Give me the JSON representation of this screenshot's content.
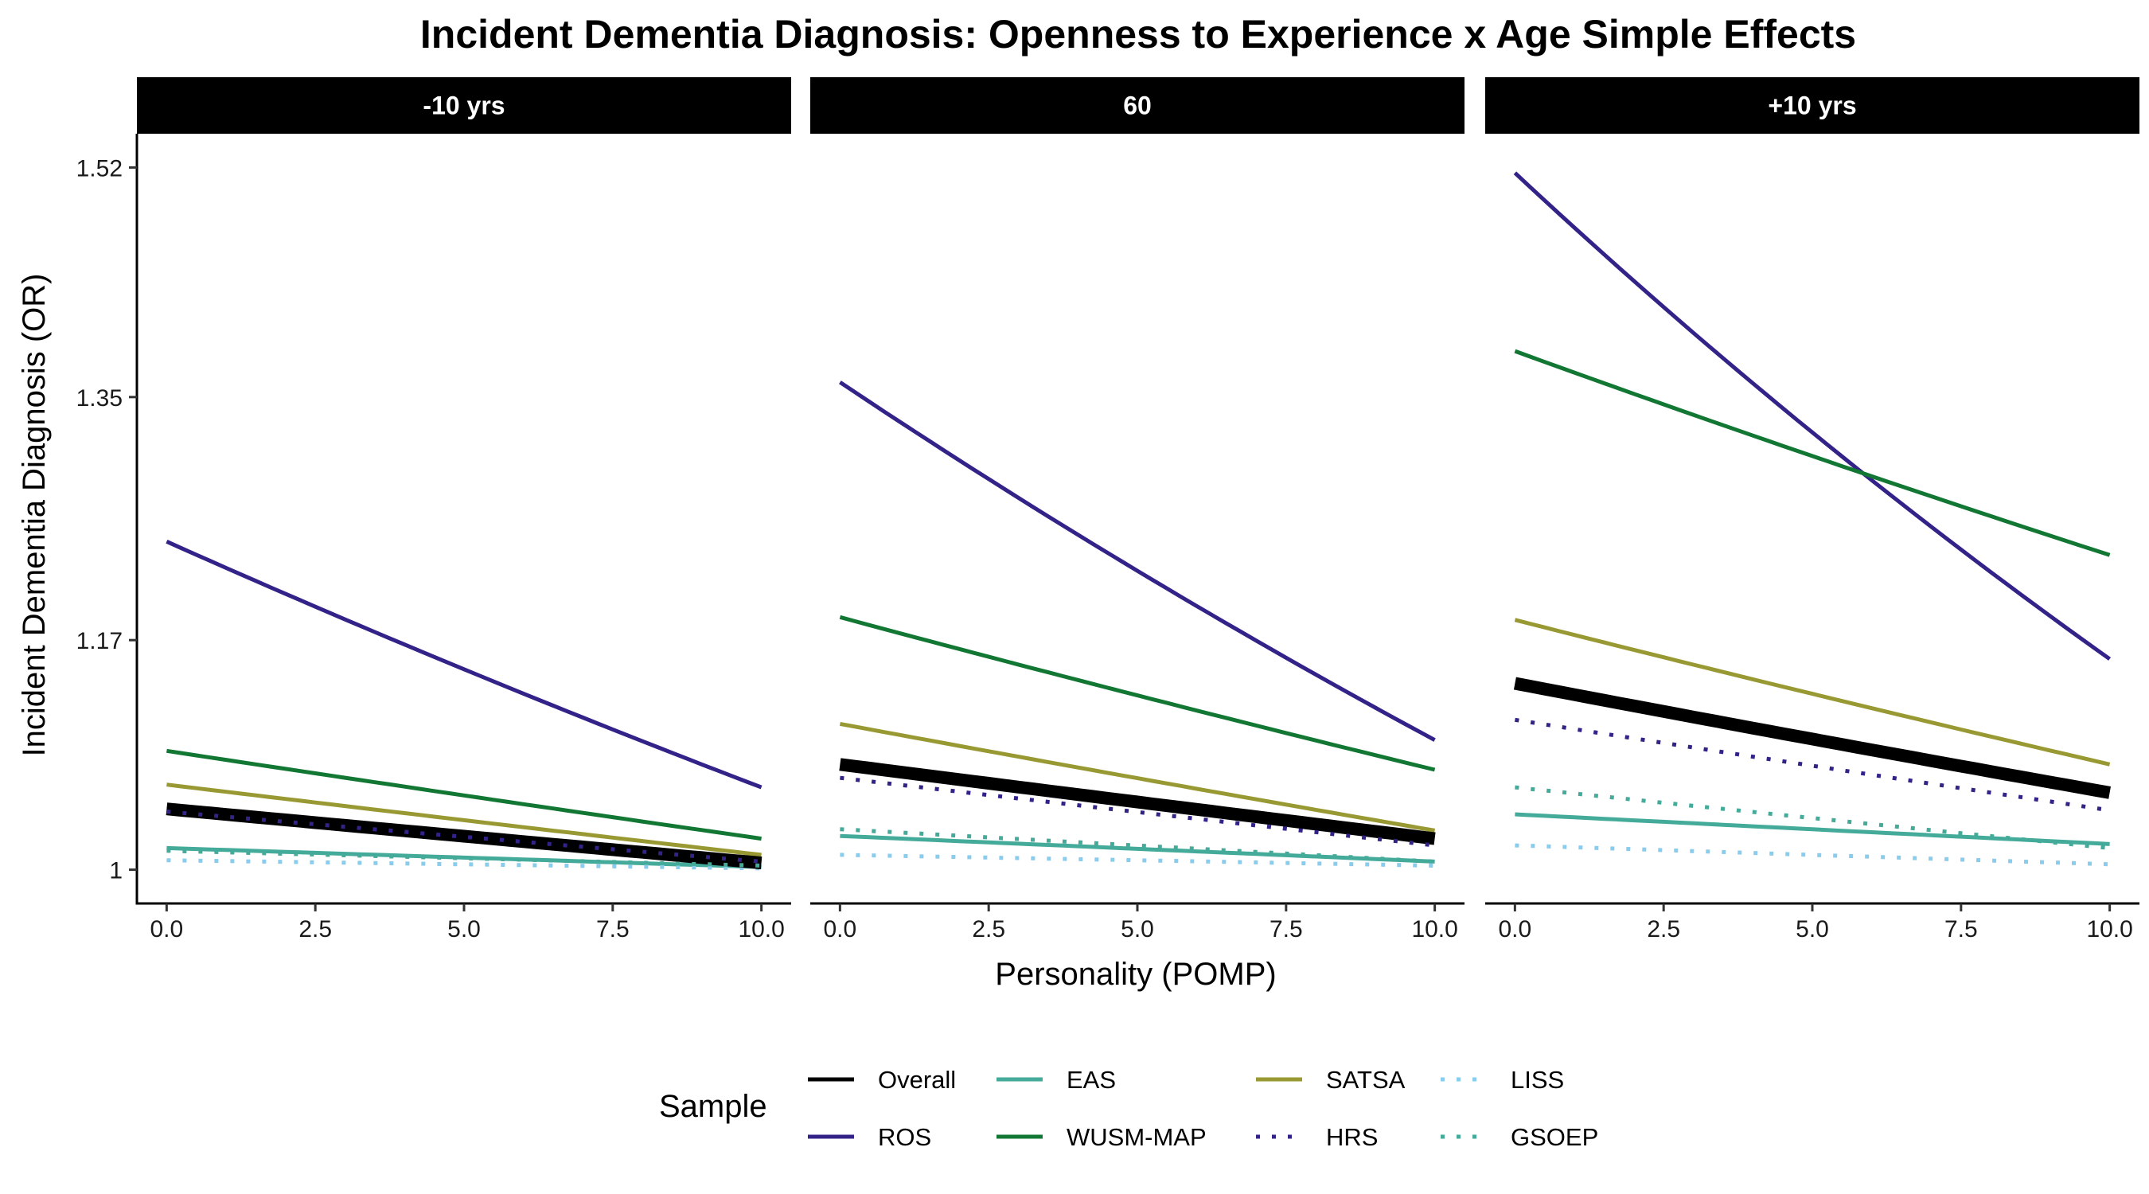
{
  "chart_data": {
    "type": "line",
    "title": "Incident Dementia Diagnosis: Openness to Experience x Age Simple Effects",
    "xlabel": "Personality (POMP)",
    "ylabel": "Incident Dementia Diagnosis (OR)",
    "x_ticks": [
      "0.0",
      "2.5",
      "5.0",
      "7.5",
      "10.0"
    ],
    "y_ticks": [
      "1",
      "1.17",
      "1.35",
      "1.52"
    ],
    "xlim": [
      -0.5,
      10.5
    ],
    "ylim": [
      0.975,
      1.545
    ],
    "grid": false,
    "legend_title": "Sample",
    "legend_position": "bottom",
    "x": [
      0,
      10
    ],
    "panels": [
      {
        "label": "-10 yrs",
        "series": [
          {
            "name": "Overall",
            "color": "#000000",
            "style": "solid",
            "width": "thick",
            "values": [
              1.045,
              1.005
            ]
          },
          {
            "name": "ROS",
            "color": "#332288",
            "style": "solid",
            "values": [
              1.243,
              1.061
            ]
          },
          {
            "name": "EAS",
            "color": "#44AA99",
            "style": "solid",
            "values": [
              1.016,
              1.002
            ]
          },
          {
            "name": "WUSM-MAP",
            "color": "#117733",
            "style": "solid",
            "values": [
              1.088,
              1.023
            ]
          },
          {
            "name": "SATSA",
            "color": "#999933",
            "style": "solid",
            "values": [
              1.063,
              1.011
            ]
          },
          {
            "name": "HRS",
            "color": "#332288",
            "style": "dotted",
            "values": [
              1.043,
              1.006
            ]
          },
          {
            "name": "LISS",
            "color": "#88CCEE",
            "style": "dotted",
            "values": [
              1.007,
              1.001
            ]
          },
          {
            "name": "GSOEP",
            "color": "#44AA99",
            "style": "dotted",
            "values": [
              1.014,
              1.003
            ]
          }
        ]
      },
      {
        "label": "60",
        "series": [
          {
            "name": "Overall",
            "color": "#000000",
            "style": "solid",
            "width": "thick",
            "values": [
              1.078,
              1.023
            ]
          },
          {
            "name": "ROS",
            "color": "#332288",
            "style": "solid",
            "values": [
              1.361,
              1.096
            ]
          },
          {
            "name": "EAS",
            "color": "#44AA99",
            "style": "solid",
            "values": [
              1.025,
              1.006
            ]
          },
          {
            "name": "WUSM-MAP",
            "color": "#117733",
            "style": "solid",
            "values": [
              1.187,
              1.074
            ]
          },
          {
            "name": "SATSA",
            "color": "#999933",
            "style": "solid",
            "values": [
              1.108,
              1.029
            ]
          },
          {
            "name": "HRS",
            "color": "#332288",
            "style": "dotted",
            "values": [
              1.068,
              1.018
            ]
          },
          {
            "name": "LISS",
            "color": "#88CCEE",
            "style": "dotted",
            "values": [
              1.011,
              1.003
            ]
          },
          {
            "name": "GSOEP",
            "color": "#44AA99",
            "style": "dotted",
            "values": [
              1.03,
              1.006
            ]
          }
        ]
      },
      {
        "label": "+10 yrs",
        "series": [
          {
            "name": "Overall",
            "color": "#000000",
            "style": "solid",
            "width": "thick",
            "values": [
              1.138,
              1.057
            ]
          },
          {
            "name": "ROS",
            "color": "#332288",
            "style": "solid",
            "values": [
              1.516,
              1.156
            ]
          },
          {
            "name": "EAS",
            "color": "#44AA99",
            "style": "solid",
            "values": [
              1.041,
              1.019
            ]
          },
          {
            "name": "WUSM-MAP",
            "color": "#117733",
            "style": "solid",
            "values": [
              1.384,
              1.233
            ]
          },
          {
            "name": "SATSA",
            "color": "#999933",
            "style": "solid",
            "values": [
              1.185,
              1.078
            ]
          },
          {
            "name": "HRS",
            "color": "#332288",
            "style": "dotted",
            "values": [
              1.111,
              1.044
            ]
          },
          {
            "name": "LISS",
            "color": "#88CCEE",
            "style": "dotted",
            "values": [
              1.018,
              1.004
            ]
          },
          {
            "name": "GSOEP",
            "color": "#44AA99",
            "style": "dotted",
            "values": [
              1.061,
              1.016
            ]
          }
        ]
      }
    ],
    "legend": [
      {
        "name": "Overall",
        "color": "#000000",
        "style": "solid"
      },
      {
        "name": "ROS",
        "color": "#332288",
        "style": "solid"
      },
      {
        "name": "EAS",
        "color": "#44AA99",
        "style": "solid"
      },
      {
        "name": "WUSM-MAP",
        "color": "#117733",
        "style": "solid"
      },
      {
        "name": "SATSA",
        "color": "#999933",
        "style": "solid"
      },
      {
        "name": "HRS",
        "color": "#332288",
        "style": "dotted"
      },
      {
        "name": "LISS",
        "color": "#88CCEE",
        "style": "dotted"
      },
      {
        "name": "GSOEP",
        "color": "#44AA99",
        "style": "dotted"
      }
    ]
  }
}
